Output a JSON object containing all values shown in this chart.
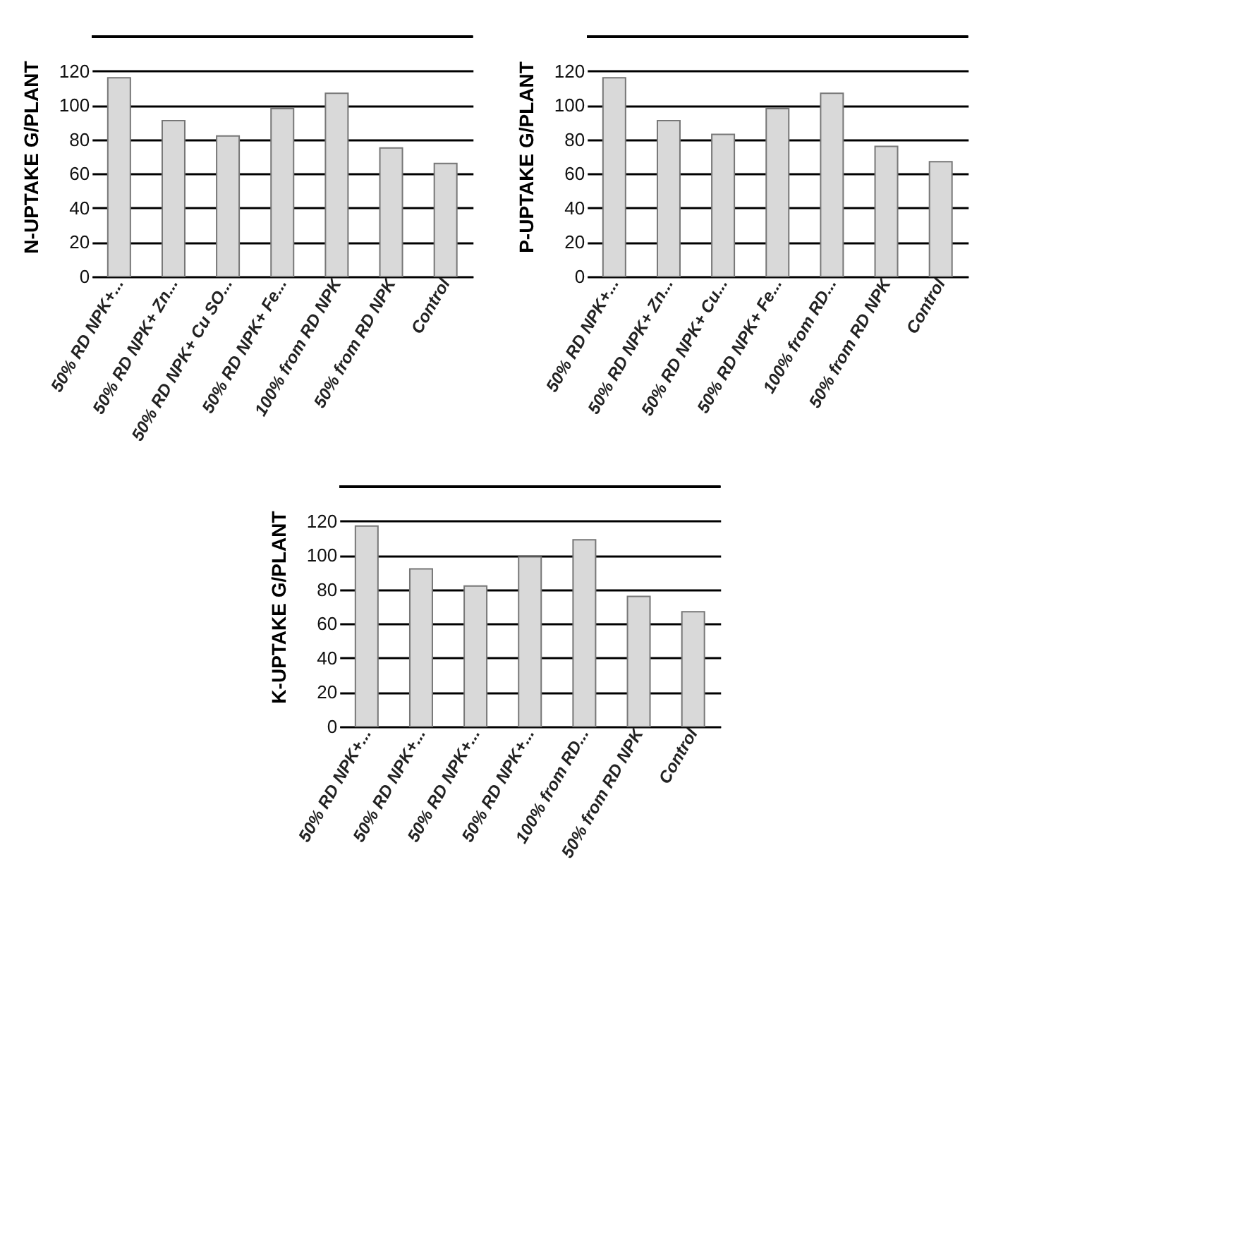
{
  "chart_data": [
    {
      "type": "bar",
      "ylabel": "N-UPTAKE G/PLANT",
      "categories": [
        "50% RD NPK+...",
        "50% RD NPK+ Zn...",
        "50% RD NPK+ Cu SO...",
        "50% RD NPK+ Fe...",
        "100%  from RD NPK",
        "50% from RD NPK",
        "Control"
      ],
      "values": [
        116,
        91,
        82,
        98,
        107,
        75,
        66
      ],
      "color": "#d9d9d9",
      "ylim": [
        0,
        140
      ],
      "yticks": [
        0,
        20,
        40,
        60,
        80,
        100,
        120
      ],
      "grid": "y"
    },
    {
      "type": "bar",
      "ylabel": "P-UPTAKE G/PLANT",
      "categories": [
        "50% RD NPK+...",
        "50% RD NPK+ Zn...",
        "50% RD NPK+ Cu...",
        "50% RD NPK+ Fe...",
        "100%  from RD...",
        "50% from RD NPK",
        "Control"
      ],
      "values": [
        116,
        91,
        83,
        98,
        107,
        76,
        67
      ],
      "color": "#d9d9d9",
      "ylim": [
        0,
        140
      ],
      "yticks": [
        0,
        20,
        40,
        60,
        80,
        100,
        120
      ],
      "grid": "y"
    },
    {
      "type": "bar",
      "ylabel": "K-UPTAKE G/PLANT",
      "categories": [
        "50% RD NPK+...",
        "50% RD NPK+...",
        "50% RD NPK+...",
        "50% RD NPK+...",
        "100%  from RD...",
        "50% from RD NPK",
        "Control"
      ],
      "values": [
        117,
        92,
        82,
        99,
        109,
        76,
        67
      ],
      "color": "#d9d9d9",
      "ylim": [
        0,
        140
      ],
      "yticks": [
        0,
        20,
        40,
        60,
        80,
        100,
        120
      ],
      "grid": "y"
    }
  ]
}
